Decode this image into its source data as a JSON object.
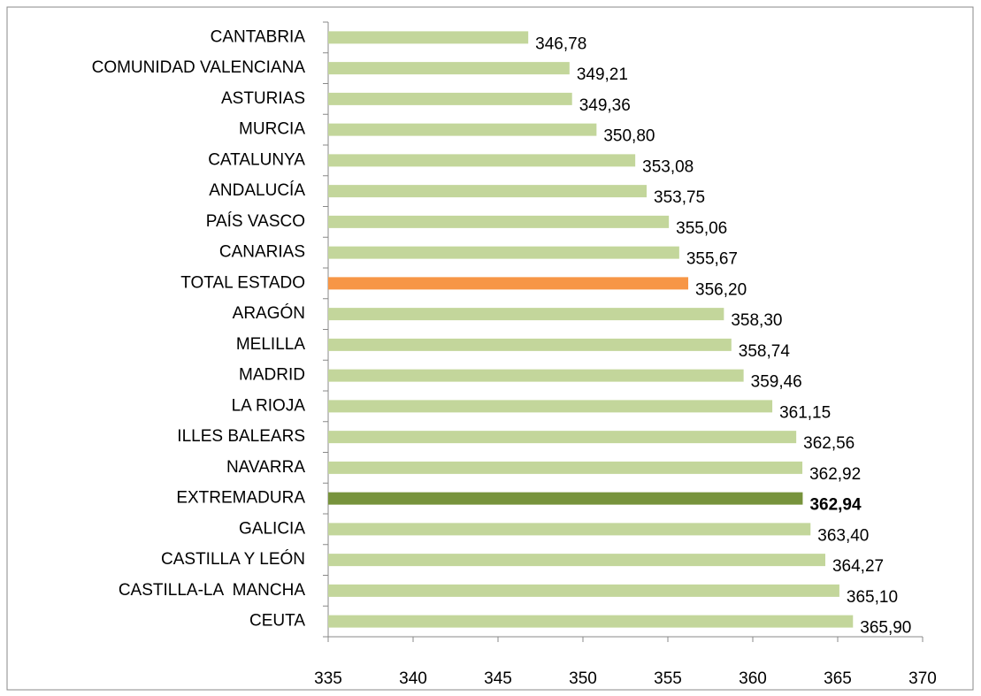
{
  "chart_data": {
    "type": "hbar",
    "categories": [
      "CANTABRIA",
      "COMUNIDAD VALENCIANA",
      "ASTURIAS",
      "MURCIA",
      "CATALUNYA",
      "ANDALUCÍA",
      "PAÍS VASCO",
      "CANARIAS",
      "TOTAL ESTADO",
      "ARAGÓN",
      "MELILLA",
      "MADRID",
      "LA RIOJA",
      "ILLES BALEARS",
      "NAVARRA",
      "EXTREMADURA",
      "GALICIA",
      "CASTILLA Y LEÓN",
      "CASTILLA-LA  MANCHA",
      "CEUTA"
    ],
    "values": [
      346.78,
      349.21,
      349.36,
      350.8,
      353.08,
      353.75,
      355.06,
      355.67,
      356.2,
      358.3,
      358.74,
      359.46,
      361.15,
      362.56,
      362.92,
      362.94,
      363.4,
      364.27,
      365.1,
      365.9
    ],
    "value_labels": [
      "346,78",
      "349,21",
      "349,36",
      "350,80",
      "353,08",
      "353,75",
      "355,06",
      "355,67",
      "356,20",
      "358,30",
      "358,74",
      "359,46",
      "361,15",
      "362,56",
      "362,92",
      "362,94",
      "363,40",
      "364,27",
      "365,10",
      "365,90"
    ],
    "colors": [
      "#c3d69b",
      "#c3d69b",
      "#c3d69b",
      "#c3d69b",
      "#c3d69b",
      "#c3d69b",
      "#c3d69b",
      "#c3d69b",
      "#f79646",
      "#c3d69b",
      "#c3d69b",
      "#c3d69b",
      "#c3d69b",
      "#c3d69b",
      "#c3d69b",
      "#77933c",
      "#c3d69b",
      "#c3d69b",
      "#c3d69b",
      "#c3d69b"
    ],
    "bold": [
      false,
      false,
      false,
      false,
      false,
      false,
      false,
      false,
      false,
      false,
      false,
      false,
      false,
      false,
      false,
      true,
      false,
      false,
      false,
      false
    ],
    "xlim": [
      335,
      370
    ],
    "xticks": [
      335,
      340,
      345,
      350,
      355,
      360,
      365,
      370
    ]
  }
}
